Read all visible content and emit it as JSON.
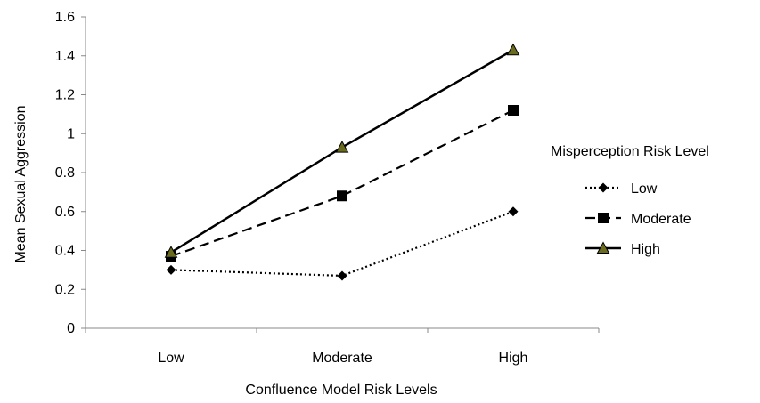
{
  "chart_data": {
    "type": "line",
    "title": "",
    "xlabel": "Confluence Model Risk Levels",
    "ylabel": "Mean Sexual Aggression",
    "categories": [
      "Low",
      "Moderate",
      "High"
    ],
    "ylim": [
      0,
      1.6
    ],
    "yticks": [
      "0",
      "0.2",
      "0.4",
      "0.6",
      "0.8",
      "1",
      "1.2",
      "1.4",
      "1.6"
    ],
    "grid": false,
    "legend": {
      "title": "Misperception Risk Level",
      "position": "right"
    },
    "series": [
      {
        "name": "Low",
        "values": [
          0.3,
          0.27,
          0.6
        ],
        "line_style": "dotted",
        "marker": "diamond",
        "color": "#000000"
      },
      {
        "name": "Moderate",
        "values": [
          0.37,
          0.68,
          1.12
        ],
        "line_style": "dashed",
        "marker": "square",
        "color": "#000000"
      },
      {
        "name": "High",
        "values": [
          0.39,
          0.93,
          1.43
        ],
        "line_style": "solid",
        "marker": "triangle",
        "color": "#000000",
        "marker_fill": "#6b6b1f"
      }
    ]
  }
}
